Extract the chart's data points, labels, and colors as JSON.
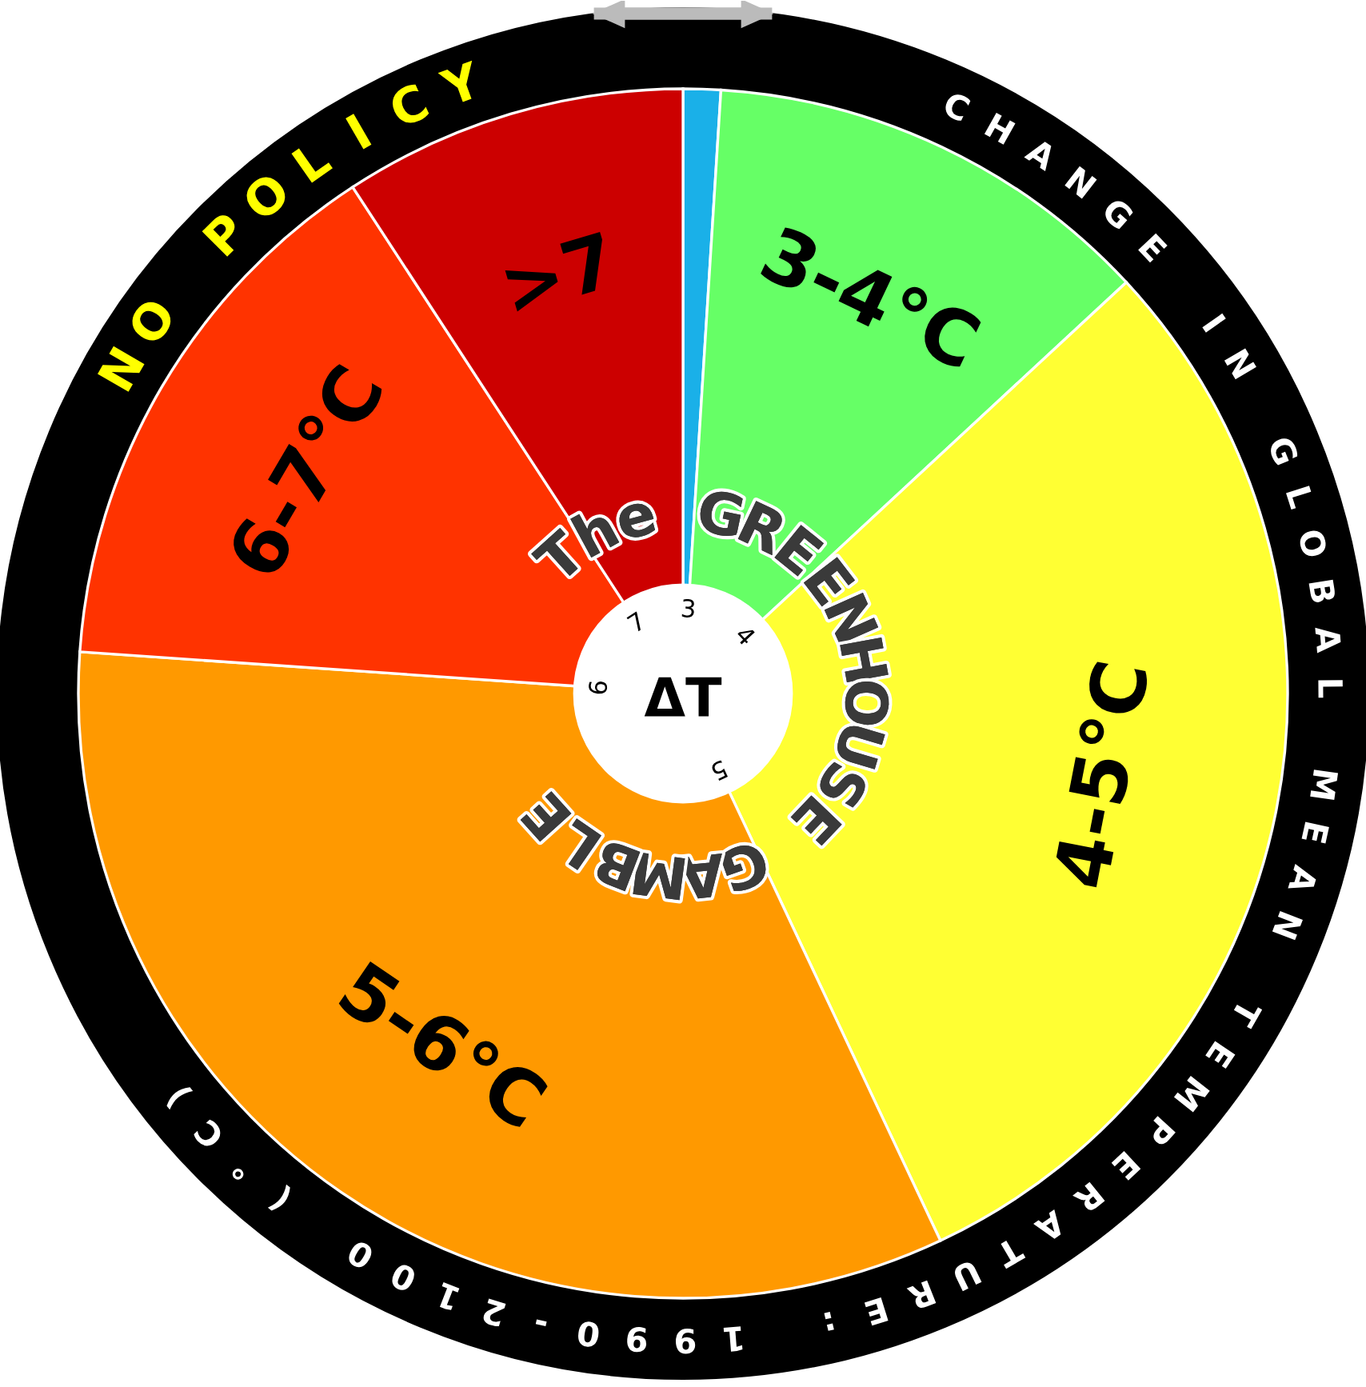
{
  "chart_data": {
    "type": "pie",
    "title": "NO POLICY",
    "subtitle": "CHANGE IN GLOBAL MEAN TEMPERATURE: 1990-2100 (°C)",
    "categories": [
      null,
      "3-4°C",
      "4-5°C",
      "5-6°C",
      "6-7°C",
      ">7"
    ],
    "values": [
      1,
      12.1,
      29.9,
      33.1,
      14.7,
      9.2
    ],
    "colors": [
      "#1ab0e8",
      "#66ff66",
      "#ffff33",
      "#ff9900",
      "#ff3300",
      "#cc0000"
    ],
    "annotations": [
      "The GREENHOUSE GAMBLE",
      "ΔT",
      "3",
      "4",
      "5",
      "6",
      "7"
    ]
  }
}
